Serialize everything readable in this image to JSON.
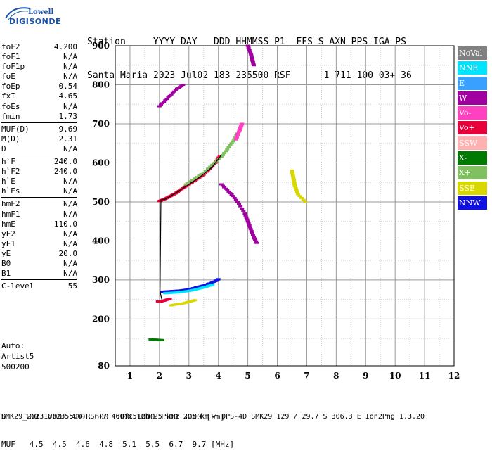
{
  "logo": {
    "top": "Lowell",
    "bottom": "DIGISONDE"
  },
  "header": {
    "row1": "Station     YYYY DAY   DDD HHMMSS P1  FFS S AXN PPS IGA PS",
    "row2": "Santa Maria 2023 Jul02 183 235500 RSF      1 711 100 03+ 36"
  },
  "params": {
    "group1": [
      {
        "label": "foF2",
        "value": "4.200"
      },
      {
        "label": "foF1",
        "value": "N/A"
      },
      {
        "label": "foF1p",
        "value": "N/A"
      },
      {
        "label": "foE",
        "value": "N/A"
      },
      {
        "label": "foEp",
        "value": "0.54"
      },
      {
        "label": "fxI",
        "value": "4.65"
      },
      {
        "label": "foEs",
        "value": "N/A"
      },
      {
        "label": "fmin",
        "value": "1.73"
      }
    ],
    "group2": [
      {
        "label": "MUF(D)",
        "value": "9.69"
      },
      {
        "label": "M(D)",
        "value": "2.31"
      },
      {
        "label": "D",
        "value": "N/A"
      }
    ],
    "group3": [
      {
        "label": "h`F",
        "value": "240.0"
      },
      {
        "label": "h`F2",
        "value": "240.0"
      },
      {
        "label": "h`E",
        "value": "N/A"
      },
      {
        "label": "h`Es",
        "value": "N/A"
      }
    ],
    "group4": [
      {
        "label": "hmF2",
        "value": "N/A"
      },
      {
        "label": "hmF1",
        "value": "N/A"
      },
      {
        "label": "hmE",
        "value": "110.0"
      },
      {
        "label": "yF2",
        "value": "N/A"
      },
      {
        "label": "yF1",
        "value": "N/A"
      },
      {
        "label": "yE",
        "value": "20.0"
      },
      {
        "label": "B0",
        "value": "N/A"
      },
      {
        "label": "B1",
        "value": "N/A"
      }
    ],
    "group5": [
      {
        "label": "C-level",
        "value": "55"
      }
    ]
  },
  "auto": {
    "line1": "Auto:",
    "line2": "Artist5",
    "line3": "500200"
  },
  "legend": [
    {
      "label": "NoVal",
      "color": "#808080"
    },
    {
      "label": "NNE",
      "color": "#00e5ff"
    },
    {
      "label": "E",
      "color": "#3aa0ff"
    },
    {
      "label": "W",
      "color": "#a000a0"
    },
    {
      "label": "Vo-",
      "color": "#ff40c0"
    },
    {
      "label": "Vo+",
      "color": "#e8003a"
    },
    {
      "label": "SSW",
      "color": "#ffb0b0"
    },
    {
      "label": "X-",
      "color": "#007a00"
    },
    {
      "label": "X+",
      "color": "#80c060"
    },
    {
      "label": "SSE",
      "color": "#d8d800"
    },
    {
      "label": "NNW",
      "color": "#1010e0"
    }
  ],
  "bottom": {
    "row1": "D    100  200  400  600  800 1000 1500 3000 [km]",
    "row2": "MUF   4.5  4.5  4.6  4.8  5.1  5.5  6.7  9.7 [MHz]"
  },
  "footer": "SMK29_2023183235500.RSF / 460fx512h 25 kHz 2.5 km / DPS-4D SMK29 129 / 29.7 S 306.3 E Ion2Png 1.3.20",
  "chart_data": {
    "type": "scatter",
    "xlim": [
      0.5,
      12
    ],
    "ylim": [
      80,
      900
    ],
    "x_ticks": [
      "1",
      "2",
      "3",
      "4",
      "5",
      "6",
      "7",
      "8",
      "9",
      "10",
      "11",
      "12"
    ],
    "y_ticks": [
      "80",
      "200",
      "300",
      "400",
      "500",
      "600",
      "700",
      "800",
      "900"
    ],
    "grid": true,
    "series": [
      {
        "color": "#e8003a",
        "x": [
          2.0,
          2.1,
          2.2,
          2.3,
          2.4,
          2.55,
          2.7,
          2.9,
          3.1,
          3.3,
          3.5,
          3.7,
          3.9,
          4.05
        ],
        "y": [
          502,
          505,
          508,
          512,
          516,
          522,
          530,
          540,
          550,
          560,
          570,
          585,
          600,
          618
        ]
      },
      {
        "color": "#e8003a",
        "x": [
          1.95,
          2.0,
          2.1,
          2.2,
          2.35
        ],
        "y": [
          245,
          244,
          246,
          248,
          252
        ]
      },
      {
        "color": "#1010e0",
        "x": [
          2.1,
          2.3,
          2.5,
          2.7,
          2.9,
          3.1,
          3.3,
          3.5,
          3.7,
          3.9,
          4.0
        ],
        "y": [
          270,
          271,
          272,
          273,
          275,
          278,
          282,
          286,
          291,
          297,
          302
        ]
      },
      {
        "color": "#00e5ff",
        "x": [
          2.2,
          2.4,
          2.6,
          2.8,
          3.0,
          3.2,
          3.4,
          3.6,
          3.8
        ],
        "y": [
          266,
          267,
          268,
          270,
          272,
          275,
          279,
          283,
          288
        ]
      },
      {
        "color": "#80c060",
        "x": [
          2.9,
          3.2,
          3.5,
          3.8,
          4.1,
          4.3,
          4.5,
          4.65
        ],
        "y": [
          545,
          560,
          575,
          595,
          615,
          635,
          655,
          675
        ]
      },
      {
        "color": "#a000a0",
        "x": [
          4.1,
          4.3,
          4.5,
          4.7,
          4.9,
          5.0,
          5.1,
          5.2,
          5.3
        ],
        "y": [
          545,
          530,
          515,
          495,
          470,
          450,
          430,
          410,
          395
        ]
      },
      {
        "color": "#a000a0",
        "x": [
          2.0,
          2.2,
          2.4,
          2.6,
          2.8
        ],
        "y": [
          745,
          760,
          775,
          790,
          800
        ]
      },
      {
        "color": "#007a00",
        "x": [
          1.7,
          1.8,
          1.9,
          2.0,
          2.1
        ],
        "y": [
          148,
          147,
          147,
          146,
          146
        ]
      },
      {
        "color": "#d8d800",
        "x": [
          2.4,
          2.6,
          2.8,
          3.0,
          3.2
        ],
        "y": [
          235,
          238,
          240,
          244,
          248
        ]
      },
      {
        "color": "#a000a0",
        "x": [
          5.0,
          5.1,
          5.15,
          5.2
        ],
        "y": [
          900,
          880,
          865,
          850
        ]
      },
      {
        "color": "#d8d800",
        "x": [
          6.5,
          6.55,
          6.6,
          6.7,
          6.95
        ],
        "y": [
          580,
          560,
          540,
          520,
          500
        ]
      },
      {
        "color": "#ff40c0",
        "x": [
          4.6,
          4.7,
          4.75,
          4.8
        ],
        "y": [
          660,
          680,
          690,
          700
        ]
      }
    ],
    "trace": {
      "x": [
        2.08,
        2.02,
        2.05,
        2.2,
        2.6,
        3.0,
        3.4,
        3.8,
        4.1
      ],
      "y": [
        250,
        270,
        505,
        507,
        525,
        545,
        565,
        590,
        620
      ]
    }
  }
}
